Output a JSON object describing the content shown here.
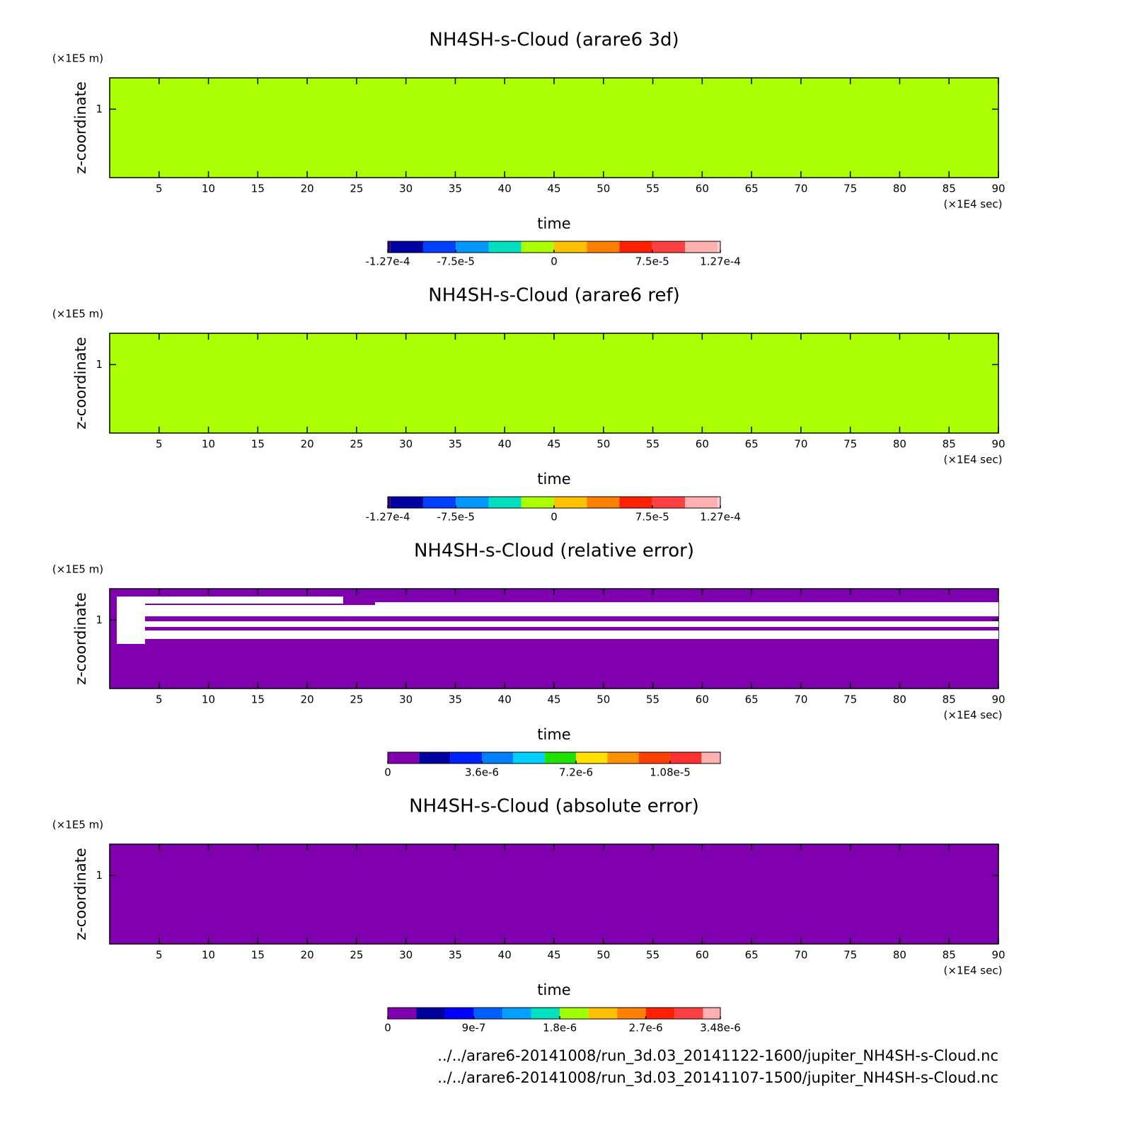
{
  "chart_data": [
    {
      "type": "heatmap",
      "title": "NH4SH-s-Cloud (arare6 3d)",
      "y_unit": "(×1E5 m)",
      "y_label": "z-coordinate",
      "x_label": "time",
      "x_unit": "(×1E4 sec)",
      "xlim": [
        0,
        90
      ],
      "xticks": [
        5,
        10,
        15,
        20,
        25,
        30,
        35,
        40,
        45,
        50,
        55,
        60,
        65,
        70,
        75,
        80,
        85,
        90
      ],
      "ylim": [
        0.52,
        1.22
      ],
      "yticks": [
        1
      ],
      "fill_color": "#aaff00",
      "colorbar": {
        "lim": [
          -0.000127,
          0.000127
        ],
        "ticks": [
          {
            "value": -0.000127,
            "label": "-1.27e-4"
          },
          {
            "value": -7.5e-05,
            "label": "-7.5e-5"
          },
          0,
          {
            "value": 7.5e-05,
            "label": "7.5e-5"
          },
          {
            "value": 0.000127,
            "label": "1.27e-4"
          }
        ],
        "levels": [
          -0.000127,
          -0.000125,
          -0.0001,
          -7.5e-05,
          -5e-05,
          -2.5e-05,
          0,
          2.5e-05,
          5e-05,
          7.5e-05,
          0.0001,
          0.000125,
          0.000127
        ],
        "colors": [
          "#300070",
          "#0000a0",
          "#0040ff",
          "#0096ff",
          "#00e0c0",
          "#aaff00",
          "#ffc000",
          "#ff8000",
          "#ff2000",
          "#ff4040",
          "#ffb0b0",
          "#ffd0d0"
        ]
      }
    },
    {
      "type": "heatmap",
      "title": "NH4SH-s-Cloud (arare6 ref)",
      "y_unit": "(×1E5 m)",
      "y_label": "z-coordinate",
      "x_label": "time",
      "x_unit": "(×1E4 sec)",
      "xlim": [
        0,
        90
      ],
      "xticks": [
        5,
        10,
        15,
        20,
        25,
        30,
        35,
        40,
        45,
        50,
        55,
        60,
        65,
        70,
        75,
        80,
        85,
        90
      ],
      "ylim": [
        0.52,
        1.22
      ],
      "yticks": [
        1
      ],
      "fill_color": "#aaff00",
      "colorbar": {
        "lim": [
          -0.000127,
          0.000127
        ],
        "ticks": [
          {
            "value": -0.000127,
            "label": "-1.27e-4"
          },
          {
            "value": -7.5e-05,
            "label": "-7.5e-5"
          },
          0,
          {
            "value": 7.5e-05,
            "label": "7.5e-5"
          },
          {
            "value": 0.000127,
            "label": "1.27e-4"
          }
        ],
        "levels": [
          -0.000127,
          -0.000125,
          -0.0001,
          -7.5e-05,
          -5e-05,
          -2.5e-05,
          0,
          2.5e-05,
          5e-05,
          7.5e-05,
          0.0001,
          0.000125,
          0.000127
        ],
        "colors": [
          "#300070",
          "#0000a0",
          "#0040ff",
          "#0096ff",
          "#00e0c0",
          "#aaff00",
          "#ffc000",
          "#ff8000",
          "#ff2000",
          "#ff4040",
          "#ffb0b0",
          "#ffd0d0"
        ]
      }
    },
    {
      "type": "heatmap",
      "title": "NH4SH-s-Cloud (relative error)",
      "y_unit": "(×1E5 m)",
      "y_label": "z-coordinate",
      "x_label": "time",
      "x_unit": "(×1E4 sec)",
      "xlim": [
        0,
        90
      ],
      "xticks": [
        5,
        10,
        15,
        20,
        25,
        30,
        35,
        40,
        45,
        50,
        55,
        60,
        65,
        70,
        75,
        80,
        85,
        90
      ],
      "ylim": [
        0.52,
        1.22
      ],
      "yticks": [
        1
      ],
      "fill_color": "#8000b0",
      "colorbar": {
        "lim": [
          0,
          1.272e-05
        ],
        "ticks": [
          0,
          {
            "value": 3.6e-06,
            "label": "3.6e-6"
          },
          {
            "value": 7.2e-06,
            "label": "7.2e-6"
          },
          {
            "value": 1.08e-05,
            "label": "1.08e-5"
          }
        ],
        "levels": [
          0,
          1.2e-06,
          2.4e-06,
          3.6e-06,
          4.8e-06,
          6e-06,
          7.2e-06,
          8.4e-06,
          9.6e-06,
          1.08e-05,
          1.2e-05,
          1.272e-05
        ],
        "colors": [
          "#8000b0",
          "#0000a0",
          "#0020ff",
          "#0080ff",
          "#00d0ff",
          "#20e000",
          "#ffe000",
          "#ff9000",
          "#ff4000",
          "#ff3030",
          "#ffb0b0"
        ]
      }
    },
    {
      "type": "heatmap",
      "title": "NH4SH-s-Cloud (absolute error)",
      "y_unit": "(×1E5 m)",
      "y_label": "z-coordinate",
      "x_label": "time",
      "x_unit": "(×1E4 sec)",
      "xlim": [
        0,
        90
      ],
      "xticks": [
        5,
        10,
        15,
        20,
        25,
        30,
        35,
        40,
        45,
        50,
        55,
        60,
        65,
        70,
        75,
        80,
        85,
        90
      ],
      "ylim": [
        0.52,
        1.22
      ],
      "yticks": [
        1
      ],
      "fill_color": "#8000b0",
      "colorbar": {
        "lim": [
          0,
          3.48e-06
        ],
        "ticks": [
          0,
          {
            "value": 9e-07,
            "label": "9e-7"
          },
          {
            "value": 1.8e-06,
            "label": "1.8e-6"
          },
          {
            "value": 2.7e-06,
            "label": "2.7e-6"
          },
          {
            "value": 3.48e-06,
            "label": "3.48e-6"
          }
        ],
        "levels": [
          0,
          3e-07,
          6e-07,
          9e-07,
          1.2e-06,
          1.5e-06,
          1.8e-06,
          2.1e-06,
          2.4e-06,
          2.7e-06,
          3e-06,
          3.3e-06,
          3.48e-06
        ],
        "colors": [
          "#8000b0",
          "#0000a0",
          "#0000ff",
          "#0060ff",
          "#00a0ff",
          "#00e0c0",
          "#a0ff00",
          "#ffc000",
          "#ff8000",
          "#ff2000",
          "#ff4040",
          "#ffb0b0"
        ]
      }
    }
  ],
  "footer": [
    "../../arare6-20141008/run_3d.03_20141122-1600/jupiter_NH4SH-s-Cloud.nc",
    "../../arare6-20141008/run_3d.03_20141107-1500/jupiter_NH4SH-s-Cloud.nc"
  ]
}
